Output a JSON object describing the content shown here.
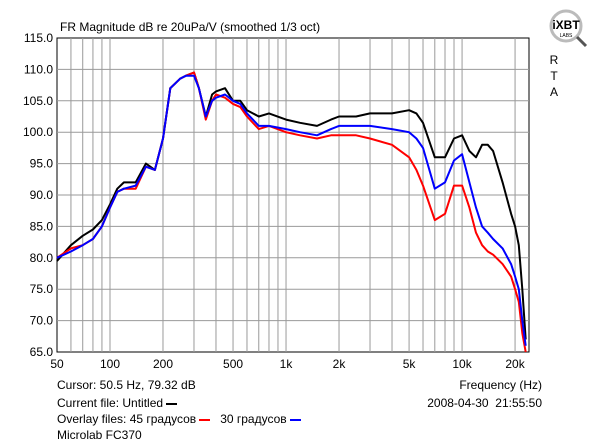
{
  "chart_data": {
    "type": "line",
    "title": "FR Magnitude dB re 20uPa/V (smoothed 1/3 oct)",
    "x_scale": "log",
    "xlim": [
      50,
      24000
    ],
    "ylim": [
      65,
      115
    ],
    "y_ticks": [
      "115.0",
      "110.0",
      "105.0",
      "100.0",
      "95.0",
      "90.0",
      "85.0",
      "80.0",
      "75.0",
      "70.0",
      "65.0"
    ],
    "x_ticks": [
      {
        "v": 50,
        "label": "50"
      },
      {
        "v": 100,
        "label": "100"
      },
      {
        "v": 200,
        "label": "200"
      },
      {
        "v": 500,
        "label": "500"
      },
      {
        "v": 1000,
        "label": "1k"
      },
      {
        "v": 2000,
        "label": "2k"
      },
      {
        "v": 5000,
        "label": "5k"
      },
      {
        "v": 10000,
        "label": "10k"
      },
      {
        "v": 20000,
        "label": "20k"
      }
    ],
    "xlabel": "Frequency (Hz)",
    "grid": true,
    "series": [
      {
        "name": "Untitled",
        "color": "#000000",
        "x": [
          50,
          60,
          70,
          80,
          90,
          100,
          110,
          120,
          140,
          160,
          180,
          200,
          220,
          250,
          270,
          300,
          320,
          350,
          380,
          400,
          450,
          500,
          550,
          600,
          700,
          800,
          1000,
          1200,
          1500,
          1800,
          2000,
          2500,
          3000,
          4000,
          5000,
          5500,
          6000,
          7000,
          8000,
          9000,
          10000,
          11000,
          12000,
          13000,
          14000,
          15000,
          17000,
          19000,
          20000,
          21000,
          22000,
          23000
        ],
        "y": [
          79.5,
          82,
          83.5,
          84.5,
          86,
          88.5,
          91,
          92,
          92,
          95,
          94,
          99,
          107,
          108.5,
          109,
          109.5,
          107,
          102.5,
          106,
          106.5,
          107,
          105,
          105,
          103.5,
          102.5,
          103,
          102,
          101.5,
          101,
          102,
          102.5,
          102.5,
          103,
          103,
          103.5,
          103,
          101.5,
          96,
          96,
          99,
          99.5,
          97,
          96,
          98,
          98,
          97,
          92,
          87,
          85,
          82,
          75,
          67
        ]
      },
      {
        "name": "45 градусов",
        "color": "#ff0000",
        "x": [
          50,
          60,
          70,
          80,
          90,
          100,
          110,
          120,
          140,
          160,
          180,
          200,
          220,
          250,
          270,
          300,
          320,
          350,
          380,
          400,
          450,
          500,
          550,
          600,
          700,
          800,
          1000,
          1200,
          1500,
          1800,
          2000,
          2500,
          3000,
          4000,
          5000,
          5500,
          6000,
          7000,
          8000,
          9000,
          10000,
          11000,
          12000,
          13000,
          14000,
          15000,
          17000,
          19000,
          20000,
          21000,
          22000,
          23000
        ],
        "y": [
          80,
          81.5,
          82,
          83,
          85,
          88,
          90.5,
          91,
          91,
          94.5,
          94,
          99,
          107,
          108.5,
          109,
          109.5,
          107,
          102,
          105,
          106,
          105.5,
          104.5,
          104,
          102.5,
          100.5,
          101,
          100,
          99.5,
          99,
          99.5,
          99.5,
          99.5,
          99,
          98,
          96,
          94,
          91.5,
          86,
          87,
          91.5,
          91.5,
          88,
          84,
          82,
          81,
          80.5,
          79,
          77,
          75,
          73,
          68,
          65
        ]
      },
      {
        "name": "30 градусов",
        "color": "#0000ff",
        "x": [
          50,
          60,
          70,
          80,
          90,
          100,
          110,
          120,
          140,
          160,
          180,
          200,
          220,
          250,
          270,
          300,
          320,
          350,
          380,
          400,
          450,
          500,
          550,
          600,
          700,
          800,
          1000,
          1200,
          1500,
          1800,
          2000,
          2500,
          3000,
          4000,
          5000,
          5500,
          6000,
          7000,
          8000,
          9000,
          10000,
          11000,
          12000,
          13000,
          14000,
          15000,
          17000,
          19000,
          20000,
          21000,
          22000,
          23000
        ],
        "y": [
          80,
          81,
          82,
          83,
          85,
          88,
          90.5,
          91,
          91.5,
          94.5,
          94,
          99,
          107,
          108.5,
          109,
          109,
          107,
          102.5,
          105,
          105.5,
          106,
          105,
          104.5,
          103,
          101,
          101,
          100.5,
          100,
          99.5,
          100.5,
          101,
          101,
          101,
          100.5,
          100,
          99,
          97.5,
          91,
          92,
          95.5,
          96.5,
          92,
          88,
          85,
          84,
          83,
          81.5,
          79,
          77,
          75,
          70,
          66
        ]
      }
    ],
    "cursor_text": "Cursor: 50.5 Hz, 79.32 dB",
    "current_file_label": "Current file: Untitled",
    "overlay_label": "Overlay files:",
    "overlay_files": [
      "45 градусов",
      "30 градусов"
    ],
    "date_text": "2008-04-30",
    "time_text": "21:55:50",
    "device_text": "Microlab FC370",
    "logo_text": "iXBT",
    "logo_subtext": "LABS",
    "rta_letters": [
      "R",
      "T",
      "A"
    ]
  }
}
